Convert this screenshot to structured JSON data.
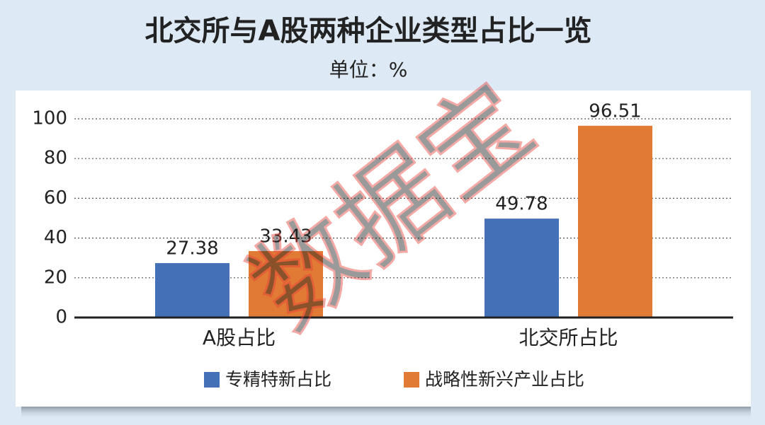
{
  "chart_data": {
    "type": "bar",
    "title": "北交所与A股两种企业类型占比一览",
    "subtitle": "单位：%",
    "categories": [
      "A股占比",
      "北交所占比"
    ],
    "series": [
      {
        "name": "专精特新占比",
        "color": "#4470b8",
        "values": [
          27.38,
          49.78
        ]
      },
      {
        "name": "战略性新兴产业占比",
        "color": "#e07a34",
        "values": [
          33.43,
          96.51
        ]
      }
    ],
    "ylim": [
      0,
      100
    ],
    "yticks": [
      0,
      20,
      40,
      60,
      80,
      100
    ],
    "grid": true
  },
  "watermark": "数据宝"
}
